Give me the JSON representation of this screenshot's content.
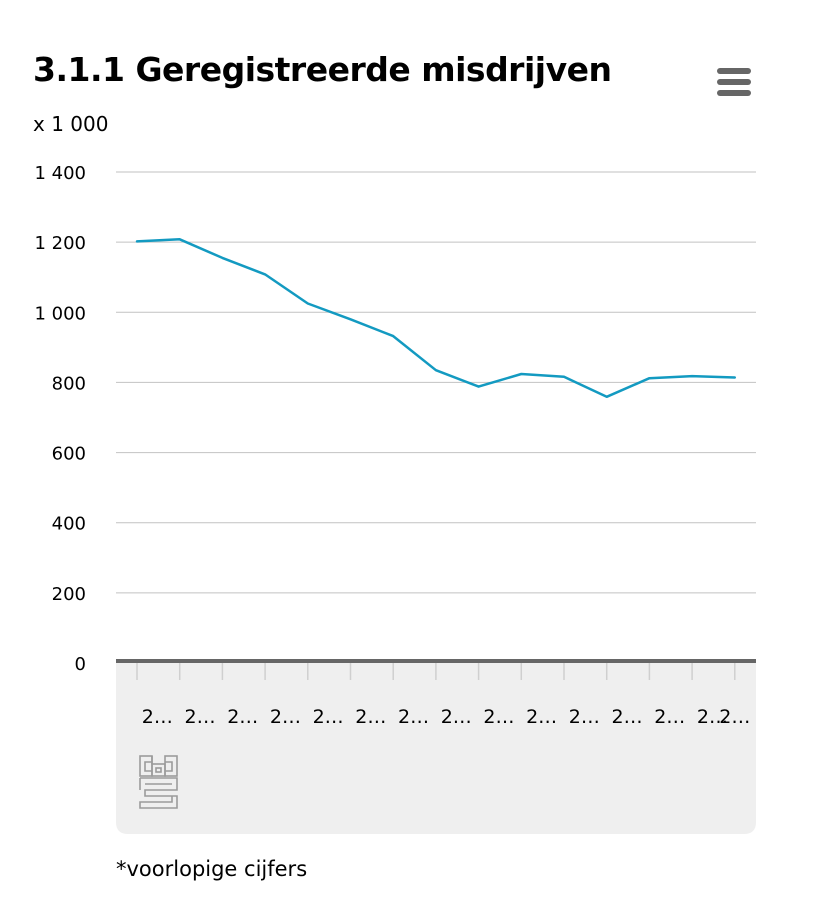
{
  "chart_data": {
    "type": "line",
    "title": "3.1.1 Geregistreerde misdrijven",
    "ylabel": "x 1 000",
    "xlabel": "",
    "ylim": [
      0,
      1400
    ],
    "yticks": [
      0,
      200,
      400,
      600,
      800,
      1000,
      1200,
      1400
    ],
    "ytick_labels": [
      "0",
      "200",
      "400",
      "600",
      "800",
      "1 000",
      "1 200",
      "1 400"
    ],
    "categories": [
      "2…",
      "2…",
      "2…",
      "2…",
      "2…",
      "2…",
      "2…",
      "2…",
      "2…",
      "2…",
      "2…",
      "2…",
      "2…",
      "2…",
      "2…"
    ],
    "series": [
      {
        "name": "Geregistreerde misdrijven",
        "color": "#139ac1",
        "values": [
          1202,
          1208,
          1155,
          1108,
          1025,
          980,
          932,
          835,
          788,
          824,
          816,
          759,
          812,
          818,
          814
        ]
      }
    ],
    "grid": true,
    "footnote": "*voorlopige cijfers"
  },
  "header": {
    "title": "3.1.1 Geregistreerde misdrijven",
    "unit": "x 1 000"
  },
  "menu": {
    "icon": "hamburger-icon"
  },
  "logo": {
    "text": "cbs"
  },
  "footer": {
    "note": "*voorlopige cijfers"
  },
  "colors": {
    "line": "#139ac1",
    "grid": "#c2c2c2",
    "axis": "#666666",
    "xaxis_band": "#efefef"
  }
}
